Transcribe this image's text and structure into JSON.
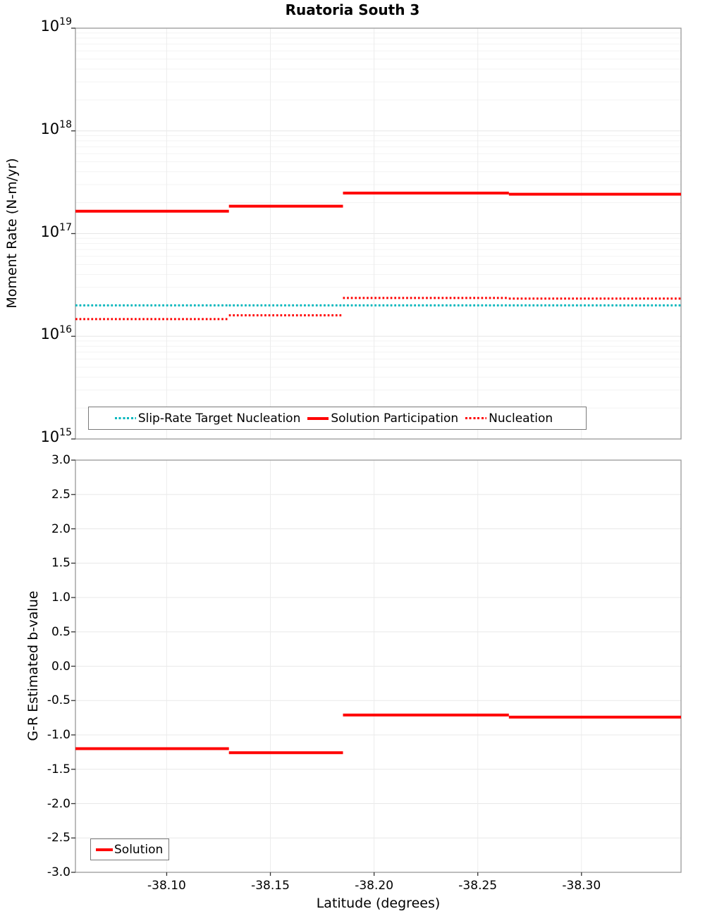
{
  "title": "Ruatoria South 3",
  "chart_data": [
    {
      "type": "line",
      "subtype": "step",
      "title": "Ruatoria South 3",
      "ylabel": "Moment Rate (N-m/yr)",
      "yscale": "log",
      "ylim": [
        1000000000000000.0,
        1e+19
      ],
      "ytick_exponents": [
        19,
        18,
        17,
        16,
        15
      ],
      "xlim_left": -38.056,
      "xlim_right": -38.348,
      "x_axis_inverted": true,
      "xtick_values": [
        -38.1,
        -38.15,
        -38.2,
        -38.25,
        -38.3
      ],
      "show_x_tick_labels": false,
      "grid": "major+minor",
      "legend_position": "bottom-inside",
      "x_boundaries": [
        -38.056,
        -38.13,
        -38.185,
        -38.265,
        -38.348
      ],
      "series": [
        {
          "name": "Slip-Rate Target Nucleation",
          "color": "#00b7bd",
          "line_style": "dotted",
          "line_width": 3,
          "values": [
            2e+16,
            2e+16,
            2e+16,
            2e+16
          ]
        },
        {
          "name": "Solution Participation",
          "color": "#ff0000",
          "line_style": "solid",
          "line_width": 4,
          "values": [
            1.65e+17,
            1.85e+17,
            2.48e+17,
            2.42e+17
          ]
        },
        {
          "name": "Nucleation",
          "color": "#ff0000",
          "line_style": "dotted",
          "line_width": 3,
          "values": [
            1.47e+16,
            1.6e+16,
            2.36e+16,
            2.33e+16
          ]
        }
      ]
    },
    {
      "type": "line",
      "subtype": "step",
      "ylabel": "G-R Estimated b-value",
      "xlabel": "Latitude (degrees)",
      "yscale": "linear",
      "ylim": [
        -3.0,
        3.0
      ],
      "ytick_values": [
        3.0,
        2.5,
        2.0,
        1.5,
        1.0,
        0.5,
        0.0,
        -0.5,
        -1.0,
        -1.5,
        -2.0,
        -2.5,
        -3.0
      ],
      "ytick_labels": [
        "3.0",
        "2.5",
        "2.0",
        "1.5",
        "1.0",
        "0.5",
        "0.0",
        "-0.5",
        "-1.0",
        "-1.5",
        "-2.0",
        "-2.5",
        "-3.0"
      ],
      "xlim_left": -38.056,
      "xlim_right": -38.348,
      "x_axis_inverted": true,
      "xtick_values": [
        -38.1,
        -38.15,
        -38.2,
        -38.25,
        -38.3
      ],
      "xtick_labels": [
        "-38.10",
        "-38.15",
        "-38.20",
        "-38.25",
        "-38.30"
      ],
      "show_x_tick_labels": true,
      "grid": "major",
      "legend_position": "bottom-left-inside",
      "x_boundaries": [
        -38.056,
        -38.13,
        -38.185,
        -38.265,
        -38.348
      ],
      "series": [
        {
          "name": "Solution",
          "color": "#ff0000",
          "line_style": "solid",
          "line_width": 4,
          "values": [
            -1.2,
            -1.26,
            -0.71,
            -0.74
          ]
        }
      ]
    }
  ]
}
